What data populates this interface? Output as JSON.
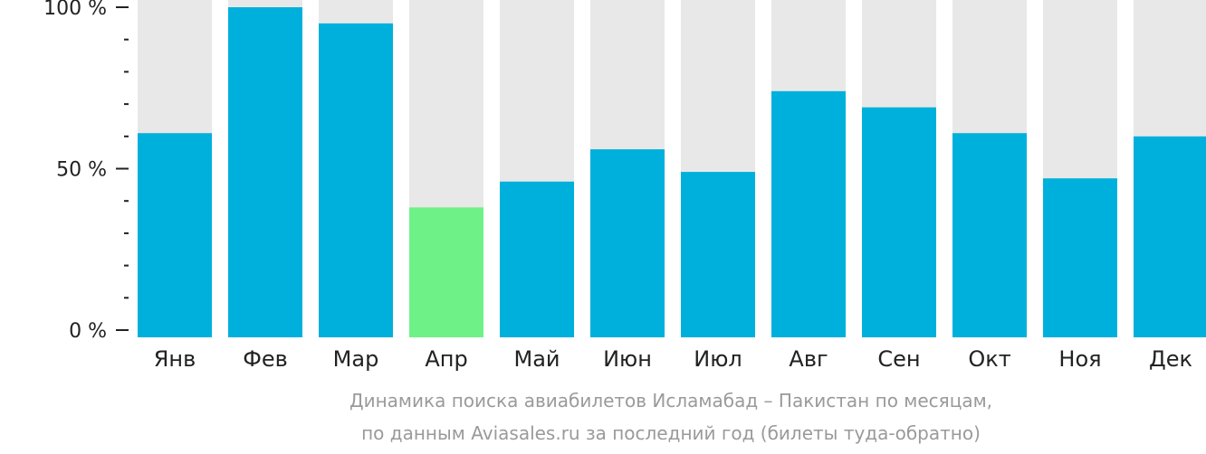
{
  "chart_data": {
    "type": "bar",
    "categories": [
      "Янв",
      "Фев",
      "Мар",
      "Апр",
      "Май",
      "Июн",
      "Июл",
      "Авг",
      "Сен",
      "Окт",
      "Ноя",
      "Дек"
    ],
    "values": [
      61,
      100,
      95,
      38,
      46,
      56,
      49,
      74,
      69,
      61,
      47,
      60
    ],
    "highlight_index": 3,
    "ylim": [
      0,
      100
    ],
    "y_ticks": [
      {
        "value": 100,
        "label": "100 %"
      },
      {
        "value": 50,
        "label": "50 %"
      },
      {
        "value": 0,
        "label": "0 %"
      }
    ],
    "minor_tick_step": 10,
    "title": "",
    "xlabel": "",
    "ylabel": "",
    "grid": false,
    "colors": {
      "bar": "#00b0dc",
      "highlight": "#6ef288",
      "background_bar": "#e8e8e8",
      "axis": "#222222",
      "caption": "#9a9a9a"
    }
  },
  "caption": {
    "line1": "Динамика поиска авиабилетов Исламабад – Пакистан по месяцам,",
    "line2": "по данным Aviasales.ru за последний год (билеты туда-обратно)"
  }
}
